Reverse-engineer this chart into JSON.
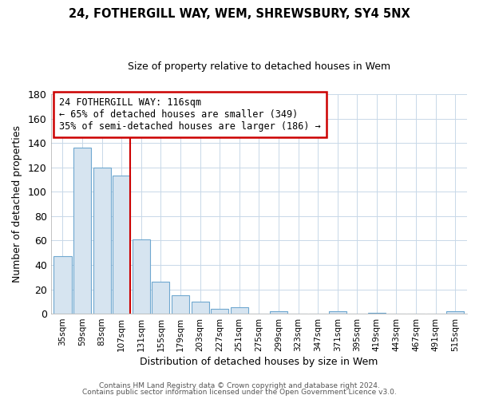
{
  "title": "24, FOTHERGILL WAY, WEM, SHREWSBURY, SY4 5NX",
  "subtitle": "Size of property relative to detached houses in Wem",
  "xlabel": "Distribution of detached houses by size in Wem",
  "ylabel": "Number of detached properties",
  "bin_labels": [
    "35sqm",
    "59sqm",
    "83sqm",
    "107sqm",
    "131sqm",
    "155sqm",
    "179sqm",
    "203sqm",
    "227sqm",
    "251sqm",
    "275sqm",
    "299sqm",
    "323sqm",
    "347sqm",
    "371sqm",
    "395sqm",
    "419sqm",
    "443sqm",
    "467sqm",
    "491sqm",
    "515sqm"
  ],
  "bar_values": [
    47,
    136,
    120,
    113,
    61,
    26,
    15,
    10,
    4,
    5,
    0,
    2,
    0,
    0,
    2,
    0,
    1,
    0,
    0,
    0,
    2
  ],
  "bar_color": "#d6e4f0",
  "bar_edge_color": "#6fa8d0",
  "vline_color": "#cc0000",
  "ylim": [
    0,
    180
  ],
  "yticks": [
    0,
    20,
    40,
    60,
    80,
    100,
    120,
    140,
    160,
    180
  ],
  "annotation_title": "24 FOTHERGILL WAY: 116sqm",
  "annotation_line1": "← 65% of detached houses are smaller (349)",
  "annotation_line2": "35% of semi-detached houses are larger (186) →",
  "annotation_box_color": "white",
  "annotation_box_edge": "#cc0000",
  "footer1": "Contains HM Land Registry data © Crown copyright and database right 2024.",
  "footer2": "Contains public sector information licensed under the Open Government Licence v3.0.",
  "grid_color": "#c8d8e8",
  "title_fontsize": 10.5,
  "subtitle_fontsize": 9
}
